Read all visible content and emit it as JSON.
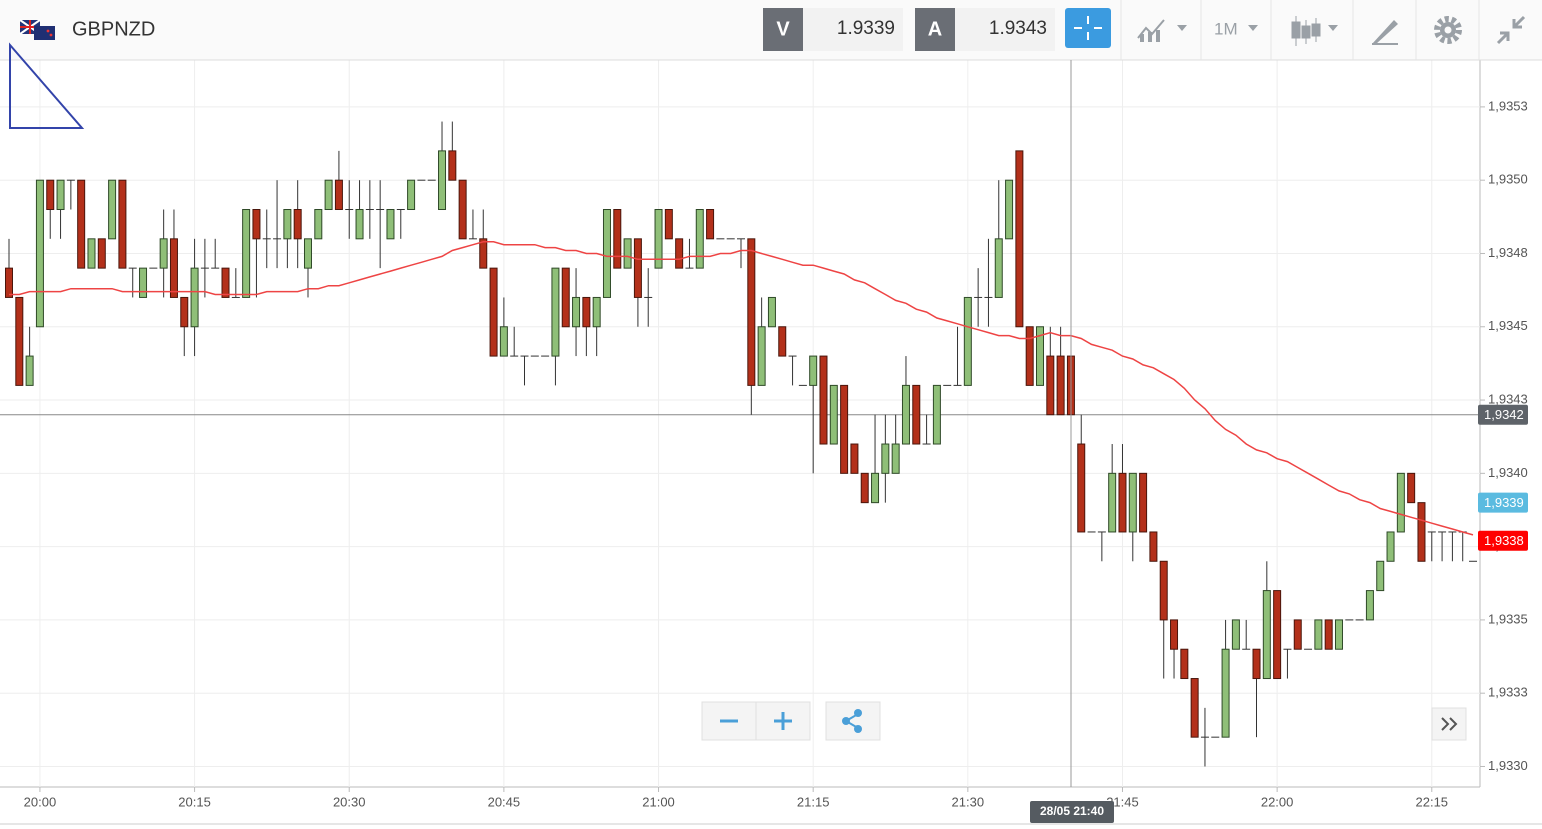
{
  "header": {
    "symbol": "GBPNZD",
    "bid_label": "V",
    "bid": 1.9339,
    "ask_label": "A",
    "ask": 1.9343,
    "timeframe": "1M"
  },
  "chart_data": {
    "type": "candlestick",
    "categories": [
      null,
      null,
      null,
      "20:00",
      null,
      null,
      null,
      null,
      null,
      null,
      null,
      null,
      null,
      null,
      null,
      null,
      null,
      null,
      "20:15",
      null,
      null,
      null,
      null,
      null,
      null,
      null,
      null,
      null,
      null,
      null,
      null,
      null,
      null,
      "20:30",
      null,
      null,
      null,
      null,
      null,
      null,
      null,
      null,
      null,
      null,
      null,
      null,
      null,
      null,
      "20:45",
      null,
      null,
      null,
      null,
      null,
      null,
      null,
      null,
      null,
      null,
      null,
      null,
      null,
      null,
      "21:00",
      null,
      null,
      null,
      null,
      null,
      null,
      null,
      null,
      null,
      null,
      null,
      null,
      null,
      null,
      "21:15",
      null,
      null,
      null,
      null,
      null,
      null,
      null,
      null,
      null,
      null,
      null,
      null,
      null,
      null,
      "21:30",
      null,
      null,
      null,
      null,
      null,
      null,
      null,
      null,
      null,
      null,
      null,
      null,
      null,
      null,
      "21:45",
      null,
      null,
      null,
      null,
      null,
      null,
      null,
      null,
      null,
      null,
      null,
      null,
      null,
      null,
      "22:00",
      null,
      null,
      null,
      null,
      null,
      null,
      null,
      null,
      null,
      null,
      null,
      null,
      null,
      null,
      "22:15",
      null,
      null,
      null,
      null
    ],
    "open": [
      1.9347,
      1.9346,
      1.9343,
      1.9345,
      1.935,
      1.9349,
      1.935,
      1.935,
      1.9347,
      1.9348,
      1.9348,
      1.935,
      1.9347,
      1.9346,
      1.9347,
      1.9347,
      1.9348,
      1.9346,
      1.9345,
      1.9347,
      1.9347,
      1.9347,
      1.9346,
      1.9346,
      1.9349,
      1.9348,
      1.9348,
      1.9348,
      1.9349,
      1.9347,
      1.9348,
      1.9349,
      1.935,
      1.9349,
      1.9348,
      1.9349,
      1.9349,
      1.9348,
      1.9349,
      1.9349,
      1.935,
      1.935,
      1.9349,
      1.9351,
      1.935,
      1.9348,
      1.9348,
      1.9347,
      1.9344,
      1.9344,
      1.9344,
      1.9344,
      1.9344,
      1.9344,
      1.9347,
      1.9345,
      1.9346,
      1.9345,
      1.9346,
      1.9349,
      1.9347,
      1.9348,
      1.9346,
      1.9347,
      1.9349,
      1.9348,
      1.9347,
      1.9347,
      1.9349,
      1.9348,
      1.9348,
      1.9348,
      1.9348,
      1.9343,
      1.9345,
      1.9345,
      1.9344,
      1.9343,
      1.9343,
      1.9344,
      1.9341,
      1.9343,
      1.9341,
      1.934,
      1.9339,
      1.934,
      1.934,
      1.9341,
      1.9343,
      1.9341,
      1.9341,
      1.9343,
      1.9343,
      1.9343,
      1.9346,
      1.9346,
      1.9346,
      1.9348,
      1.9351,
      1.9345,
      1.9343,
      1.9344,
      1.9344,
      1.9344,
      1.9341,
      1.9338,
      1.9338,
      1.9338,
      1.934,
      1.9338,
      1.934,
      1.9338,
      1.9337,
      1.9335,
      1.9334,
      1.9333,
      1.9331,
      1.9331,
      1.9331,
      1.9334,
      1.9334,
      1.9334,
      1.9333,
      1.9336,
      1.9334,
      1.9335,
      1.9334,
      1.9334,
      1.9335,
      1.9334,
      1.9335,
      1.9335,
      1.9335,
      1.9336,
      1.9337,
      1.9338,
      1.934,
      1.9339,
      1.9338,
      1.9338,
      1.9338,
      1.9338,
      1.9337
    ],
    "high": [
      1.9348,
      1.9346,
      1.9345,
      1.935,
      1.935,
      1.935,
      1.935,
      1.935,
      1.9348,
      1.9348,
      1.935,
      1.935,
      1.9347,
      1.9347,
      1.9347,
      1.9349,
      1.9349,
      1.9346,
      1.9348,
      1.9348,
      1.9348,
      1.9347,
      1.9347,
      1.9349,
      1.9349,
      1.9349,
      1.935,
      1.9349,
      1.935,
      1.9348,
      1.9349,
      1.935,
      1.9351,
      1.935,
      1.935,
      1.935,
      1.935,
      1.9349,
      1.9349,
      1.935,
      1.935,
      1.935,
      1.9352,
      1.9352,
      1.935,
      1.9349,
      1.9349,
      1.9347,
      1.9346,
      1.9345,
      1.9344,
      1.9344,
      1.9344,
      1.9347,
      1.9347,
      1.9347,
      1.9346,
      1.9346,
      1.9349,
      1.9349,
      1.9348,
      1.9348,
      1.9347,
      1.9349,
      1.9349,
      1.9348,
      1.9348,
      1.9349,
      1.9349,
      1.9348,
      1.9348,
      1.9348,
      1.9348,
      1.9346,
      1.9346,
      1.9345,
      1.9344,
      1.9343,
      1.9344,
      1.9344,
      1.9343,
      1.9343,
      1.9341,
      1.934,
      1.9342,
      1.9342,
      1.9342,
      1.9344,
      1.9343,
      1.9342,
      1.9343,
      1.9343,
      1.9345,
      1.9346,
      1.9347,
      1.9348,
      1.935,
      1.935,
      1.9351,
      1.9345,
      1.9345,
      1.9345,
      1.9345,
      1.9344,
      1.9342,
      1.9338,
      1.9338,
      1.9341,
      1.9341,
      1.934,
      1.934,
      1.9338,
      1.9337,
      1.9335,
      1.9334,
      1.9333,
      1.9332,
      1.9331,
      1.9335,
      1.9335,
      1.9335,
      1.9334,
      1.9337,
      1.9336,
      1.9334,
      1.9335,
      1.9334,
      1.9335,
      1.9335,
      1.9335,
      1.9335,
      1.9335,
      1.9336,
      1.9337,
      1.9338,
      1.934,
      1.934,
      1.9339,
      1.9338,
      1.9338,
      1.9338,
      1.9338,
      1.9337
    ],
    "low": [
      1.9346,
      1.9343,
      1.9343,
      1.9345,
      1.9348,
      1.9348,
      1.9349,
      1.9347,
      1.9347,
      1.9347,
      1.9348,
      1.9347,
      1.9346,
      1.9346,
      1.9347,
      1.9346,
      1.9346,
      1.9344,
      1.9344,
      1.9346,
      1.9347,
      1.9346,
      1.9346,
      1.9346,
      1.9346,
      1.9347,
      1.9347,
      1.9347,
      1.9347,
      1.9346,
      1.9348,
      1.9349,
      1.9349,
      1.9348,
      1.9348,
      1.9348,
      1.9347,
      1.9348,
      1.9348,
      1.9349,
      1.935,
      1.935,
      1.9349,
      1.935,
      1.9348,
      1.9348,
      1.9347,
      1.9344,
      1.9344,
      1.9344,
      1.9343,
      1.9344,
      1.9344,
      1.9343,
      1.9345,
      1.9344,
      1.9344,
      1.9344,
      1.9346,
      1.9347,
      1.9347,
      1.9345,
      1.9345,
      1.9347,
      1.9348,
      1.9347,
      1.9347,
      1.9347,
      1.9348,
      1.9348,
      1.9348,
      1.9347,
      1.9342,
      1.9343,
      1.9345,
      1.9344,
      1.9343,
      1.9343,
      1.934,
      1.9341,
      1.9341,
      1.934,
      1.934,
      1.9339,
      1.9339,
      1.9339,
      1.934,
      1.9341,
      1.9341,
      1.9341,
      1.9341,
      1.9343,
      1.9343,
      1.9343,
      1.9345,
      1.9345,
      1.9346,
      1.9348,
      1.9345,
      1.9343,
      1.9343,
      1.9342,
      1.9342,
      1.9342,
      1.9338,
      1.9338,
      1.9337,
      1.9338,
      1.9338,
      1.9337,
      1.9338,
      1.9337,
      1.9333,
      1.9333,
      1.9333,
      1.9331,
      1.933,
      1.9331,
      1.9331,
      1.9334,
      1.9334,
      1.9331,
      1.9333,
      1.9333,
      1.9333,
      1.9334,
      1.9334,
      1.9334,
      1.9334,
      1.9334,
      1.9335,
      1.9335,
      1.9335,
      1.9336,
      1.9337,
      1.9338,
      1.9339,
      1.9337,
      1.9337,
      1.9337,
      1.9337,
      1.9337,
      1.9337
    ],
    "close": [
      1.9346,
      1.9343,
      1.9344,
      1.935,
      1.9349,
      1.935,
      1.935,
      1.9347,
      1.9348,
      1.9347,
      1.935,
      1.9347,
      1.9347,
      1.9347,
      1.9347,
      1.9348,
      1.9346,
      1.9345,
      1.9347,
      1.9347,
      1.9347,
      1.9346,
      1.9346,
      1.9349,
      1.9348,
      1.9348,
      1.9348,
      1.9349,
      1.9348,
      1.9348,
      1.9349,
      1.935,
      1.9349,
      1.9349,
      1.9349,
      1.9349,
      1.9349,
      1.9349,
      1.9349,
      1.935,
      1.935,
      1.935,
      1.9351,
      1.935,
      1.9348,
      1.9348,
      1.9347,
      1.9344,
      1.9345,
      1.9344,
      1.9344,
      1.9344,
      1.9344,
      1.9347,
      1.9345,
      1.9346,
      1.9345,
      1.9346,
      1.9349,
      1.9347,
      1.9348,
      1.9346,
      1.9346,
      1.9349,
      1.9348,
      1.9347,
      1.9347,
      1.9349,
      1.9348,
      1.9348,
      1.9348,
      1.9348,
      1.9343,
      1.9345,
      1.9346,
      1.9344,
      1.9344,
      1.9343,
      1.9344,
      1.9341,
      1.9343,
      1.934,
      1.934,
      1.9339,
      1.934,
      1.9341,
      1.9341,
      1.9343,
      1.9341,
      1.9341,
      1.9343,
      1.9343,
      1.9343,
      1.9346,
      1.9346,
      1.9346,
      1.9348,
      1.935,
      1.9345,
      1.9343,
      1.9345,
      1.9342,
      1.9342,
      1.9342,
      1.9338,
      1.9338,
      1.9338,
      1.934,
      1.9338,
      1.934,
      1.9338,
      1.9337,
      1.9335,
      1.9334,
      1.9333,
      1.9331,
      1.9331,
      1.9331,
      1.9334,
      1.9335,
      1.9334,
      1.9333,
      1.9336,
      1.9333,
      1.9334,
      1.9334,
      1.9334,
      1.9335,
      1.9334,
      1.9335,
      1.9335,
      1.9335,
      1.9336,
      1.9337,
      1.9338,
      1.934,
      1.9339,
      1.9337,
      1.9338,
      1.9338,
      1.9338,
      1.9338,
      1.9337
    ],
    "up_color": "#8fbf78",
    "down_color": "#b3301a",
    "ma": {
      "color": "#ee4444",
      "values": [
        1.93461,
        1.93461,
        1.93462,
        1.93462,
        1.93462,
        1.93462,
        1.93463,
        1.93463,
        1.93463,
        1.93463,
        1.93463,
        1.93462,
        1.93462,
        1.93462,
        1.93462,
        1.93462,
        1.93462,
        1.93462,
        1.93462,
        1.93462,
        1.93461,
        1.93461,
        1.93461,
        1.93461,
        1.93461,
        1.93462,
        1.93462,
        1.93462,
        1.93462,
        1.93463,
        1.93463,
        1.93464,
        1.93464,
        1.93465,
        1.93466,
        1.93467,
        1.93468,
        1.93469,
        1.9347,
        1.93471,
        1.93472,
        1.93473,
        1.93474,
        1.93476,
        1.93477,
        1.93478,
        1.93479,
        1.93479,
        1.93478,
        1.93478,
        1.93478,
        1.93478,
        1.93477,
        1.93477,
        1.93476,
        1.93476,
        1.93475,
        1.93475,
        1.93474,
        1.93474,
        1.93474,
        1.93473,
        1.93473,
        1.93473,
        1.93473,
        1.93473,
        1.93474,
        1.93474,
        1.93474,
        1.93475,
        1.93475,
        1.93476,
        1.93476,
        1.93475,
        1.93474,
        1.93473,
        1.93472,
        1.93471,
        1.93471,
        1.9347,
        1.93469,
        1.93468,
        1.93466,
        1.93465,
        1.93463,
        1.93461,
        1.93459,
        1.93458,
        1.93456,
        1.93455,
        1.93453,
        1.93452,
        1.93451,
        1.9345,
        1.93449,
        1.93448,
        1.93447,
        1.93447,
        1.93446,
        1.93446,
        1.93447,
        1.93448,
        1.93447,
        1.93447,
        1.93446,
        1.93444,
        1.93443,
        1.93442,
        1.9344,
        1.93439,
        1.93437,
        1.93436,
        1.93434,
        1.93432,
        1.93429,
        1.93425,
        1.93422,
        1.93418,
        1.93415,
        1.93413,
        1.9341,
        1.93408,
        1.93407,
        1.93405,
        1.93404,
        1.93402,
        1.934,
        1.93398,
        1.93396,
        1.93394,
        1.93393,
        1.93391,
        1.9339,
        1.93388,
        1.93387,
        1.93386,
        1.93385,
        1.93384,
        1.93383,
        1.93382,
        1.93381,
        1.9338,
        1.93379
      ]
    },
    "ylim": [
      1.93293,
      1.93541
    ],
    "yticks": [
      {
        "value": 1.93525,
        "label": "1,9353"
      },
      {
        "value": 1.935,
        "label": "1,9350"
      },
      {
        "value": 1.93475,
        "label": "1,9348"
      },
      {
        "value": 1.9345,
        "label": "1,9345"
      },
      {
        "value": 1.93425,
        "label": "1,9343"
      },
      {
        "value": 1.934,
        "label": "1,9340"
      },
      {
        "value": 1.93375,
        "label": "1,9338"
      },
      {
        "value": 1.9335,
        "label": "1,9335"
      },
      {
        "value": 1.93325,
        "label": "1,9333"
      },
      {
        "value": 1.933,
        "label": "1,9330"
      }
    ],
    "grid": true,
    "price_markers": [
      {
        "value": 1.9342,
        "label": "1,9342",
        "color": "#5e6369",
        "line": true
      },
      {
        "value": 1.9339,
        "label": "1,9339",
        "color": "#5bbbe0"
      },
      {
        "value": 1.93377,
        "label": "1,9338",
        "color": "#ff0000"
      }
    ],
    "crosshair_label": "28/05 21:40"
  }
}
